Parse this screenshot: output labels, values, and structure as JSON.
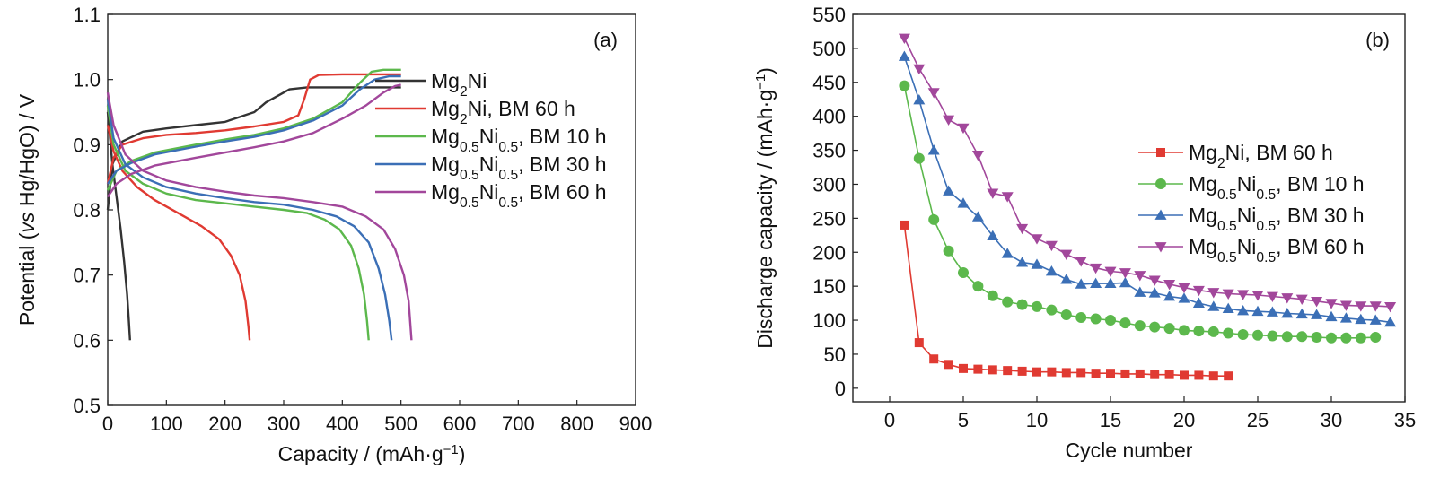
{
  "chart_data": [
    {
      "type": "line",
      "panel_label": "(a)",
      "xlabel": "Capacity / (mAh·g⁻¹)",
      "ylabel": "Potential (vs Hg/HgO) / V",
      "xlim": [
        0,
        900
      ],
      "ylim": [
        0.5,
        1.1
      ],
      "x_ticks": [
        0,
        100,
        200,
        300,
        400,
        500,
        600,
        700,
        800,
        900
      ],
      "y_ticks": [
        0.5,
        0.6,
        0.7,
        0.8,
        0.9,
        1.0,
        1.1
      ],
      "legend_position": "right",
      "series": [
        {
          "name": "Mg₂Ni",
          "color": "#333333",
          "branches": [
            [
              [
                0,
                0.8
              ],
              [
                8,
                0.87
              ],
              [
                25,
                0.905
              ],
              [
                60,
                0.92
              ],
              [
                100,
                0.925
              ],
              [
                150,
                0.93
              ],
              [
                200,
                0.935
              ],
              [
                250,
                0.95
              ],
              [
                270,
                0.965
              ],
              [
                290,
                0.975
              ],
              [
                310,
                0.985
              ],
              [
                340,
                0.988
              ],
              [
                400,
                0.988
              ],
              [
                450,
                0.988
              ],
              [
                500,
                0.988
              ]
            ],
            [
              [
                0,
                0.95
              ],
              [
                8,
                0.87
              ],
              [
                15,
                0.82
              ],
              [
                22,
                0.77
              ],
              [
                28,
                0.72
              ],
              [
                33,
                0.67
              ],
              [
                36,
                0.63
              ],
              [
                38,
                0.6
              ]
            ]
          ]
        },
        {
          "name": "Mg₂Ni, BM 60 h",
          "color": "#e03a32",
          "branches": [
            [
              [
                0,
                0.84
              ],
              [
                10,
                0.88
              ],
              [
                25,
                0.9
              ],
              [
                60,
                0.91
              ],
              [
                100,
                0.915
              ],
              [
                150,
                0.918
              ],
              [
                200,
                0.922
              ],
              [
                250,
                0.928
              ],
              [
                300,
                0.935
              ],
              [
                325,
                0.945
              ],
              [
                335,
                0.97
              ],
              [
                345,
                1.0
              ],
              [
                360,
                1.007
              ],
              [
                400,
                1.008
              ],
              [
                450,
                1.008
              ],
              [
                500,
                1.008
              ]
            ],
            [
              [
                0,
                0.93
              ],
              [
                10,
                0.89
              ],
              [
                25,
                0.86
              ],
              [
                50,
                0.835
              ],
              [
                80,
                0.815
              ],
              [
                120,
                0.795
              ],
              [
                160,
                0.775
              ],
              [
                190,
                0.755
              ],
              [
                210,
                0.73
              ],
              [
                225,
                0.7
              ],
              [
                235,
                0.66
              ],
              [
                240,
                0.62
              ],
              [
                242,
                0.6
              ]
            ]
          ]
        },
        {
          "name": "Mg₀.₅Ni₀.₅, BM 10 h",
          "color": "#5cb84c",
          "branches": [
            [
              [
                0,
                0.83
              ],
              [
                15,
                0.86
              ],
              [
                40,
                0.875
              ],
              [
                80,
                0.888
              ],
              [
                150,
                0.9
              ],
              [
                200,
                0.908
              ],
              [
                250,
                0.915
              ],
              [
                300,
                0.925
              ],
              [
                350,
                0.94
              ],
              [
                400,
                0.965
              ],
              [
                430,
                0.995
              ],
              [
                450,
                1.012
              ],
              [
                470,
                1.015
              ],
              [
                500,
                1.015
              ]
            ],
            [
              [
                0,
                0.96
              ],
              [
                10,
                0.9
              ],
              [
                30,
                0.86
              ],
              [
                60,
                0.84
              ],
              [
                100,
                0.825
              ],
              [
                150,
                0.815
              ],
              [
                200,
                0.81
              ],
              [
                250,
                0.805
              ],
              [
                300,
                0.8
              ],
              [
                340,
                0.795
              ],
              [
                370,
                0.785
              ],
              [
                395,
                0.77
              ],
              [
                415,
                0.745
              ],
              [
                428,
                0.71
              ],
              [
                437,
                0.67
              ],
              [
                442,
                0.63
              ],
              [
                445,
                0.6
              ]
            ]
          ]
        },
        {
          "name": "Mg₀.₅Ni₀.₅, BM 30 h",
          "color": "#3b6fb6",
          "branches": [
            [
              [
                0,
                0.84
              ],
              [
                15,
                0.86
              ],
              [
                40,
                0.872
              ],
              [
                80,
                0.885
              ],
              [
                150,
                0.897
              ],
              [
                200,
                0.905
              ],
              [
                250,
                0.912
              ],
              [
                300,
                0.922
              ],
              [
                350,
                0.937
              ],
              [
                400,
                0.96
              ],
              [
                430,
                0.985
              ],
              [
                455,
                1.0
              ],
              [
                480,
                1.005
              ],
              [
                500,
                1.005
              ]
            ],
            [
              [
                0,
                0.97
              ],
              [
                10,
                0.91
              ],
              [
                30,
                0.87
              ],
              [
                60,
                0.85
              ],
              [
                100,
                0.835
              ],
              [
                150,
                0.825
              ],
              [
                200,
                0.818
              ],
              [
                250,
                0.812
              ],
              [
                300,
                0.808
              ],
              [
                350,
                0.8
              ],
              [
                390,
                0.79
              ],
              [
                420,
                0.775
              ],
              [
                445,
                0.75
              ],
              [
                462,
                0.71
              ],
              [
                473,
                0.67
              ],
              [
                480,
                0.63
              ],
              [
                484,
                0.6
              ]
            ]
          ]
        },
        {
          "name": "Mg₀.₅Ni₀.₅, BM 60 h",
          "color": "#a2479b",
          "branches": [
            [
              [
                0,
                0.82
              ],
              [
                15,
                0.84
              ],
              [
                40,
                0.855
              ],
              [
                80,
                0.868
              ],
              [
                150,
                0.88
              ],
              [
                200,
                0.888
              ],
              [
                250,
                0.896
              ],
              [
                300,
                0.905
              ],
              [
                350,
                0.918
              ],
              [
                400,
                0.94
              ],
              [
                440,
                0.96
              ],
              [
                470,
                0.98
              ],
              [
                490,
                0.99
              ],
              [
                500,
                0.992
              ]
            ],
            [
              [
                0,
                0.98
              ],
              [
                10,
                0.93
              ],
              [
                30,
                0.885
              ],
              [
                60,
                0.86
              ],
              [
                100,
                0.845
              ],
              [
                150,
                0.835
              ],
              [
                200,
                0.828
              ],
              [
                250,
                0.822
              ],
              [
                300,
                0.818
              ],
              [
                350,
                0.812
              ],
              [
                400,
                0.805
              ],
              [
                440,
                0.79
              ],
              [
                470,
                0.77
              ],
              [
                490,
                0.74
              ],
              [
                505,
                0.7
              ],
              [
                513,
                0.66
              ],
              [
                518,
                0.6
              ]
            ]
          ]
        }
      ]
    },
    {
      "type": "line",
      "panel_label": "(b)",
      "xlabel": "Cycle number",
      "ylabel": "Discharge capacity / (mAh·g⁻¹)",
      "xlim": [
        -2.5,
        35
      ],
      "ylim": [
        -20,
        550
      ],
      "x_ticks": [
        0,
        5,
        10,
        15,
        20,
        25,
        30,
        35
      ],
      "y_ticks": [
        0,
        50,
        100,
        150,
        200,
        250,
        300,
        350,
        400,
        450,
        500,
        550
      ],
      "legend_position": "right",
      "series": [
        {
          "name": "Mg₂Ni, BM 60 h",
          "color": "#e03a32",
          "marker": "square",
          "x": [
            1,
            2,
            3,
            4,
            5,
            6,
            7,
            8,
            9,
            10,
            11,
            12,
            13,
            14,
            15,
            16,
            17,
            18,
            19,
            20,
            21,
            22,
            23
          ],
          "y": [
            240,
            67,
            43,
            35,
            29,
            28,
            27,
            26,
            25,
            24,
            24,
            23,
            23,
            22,
            22,
            21,
            21,
            20,
            20,
            19,
            19,
            18,
            18
          ]
        },
        {
          "name": "Mg₀.₅Ni₀.₅, BM 10 h",
          "color": "#5cb84c",
          "marker": "circle",
          "x": [
            1,
            2,
            3,
            4,
            5,
            6,
            7,
            8,
            9,
            10,
            11,
            12,
            13,
            14,
            15,
            16,
            17,
            18,
            19,
            20,
            21,
            22,
            23,
            24,
            25,
            26,
            27,
            28,
            29,
            30,
            31,
            32,
            33
          ],
          "y": [
            445,
            338,
            248,
            202,
            170,
            150,
            136,
            127,
            123,
            120,
            115,
            108,
            104,
            102,
            100,
            96,
            92,
            90,
            88,
            85,
            84,
            83,
            81,
            79,
            78,
            77,
            76,
            76,
            75,
            74,
            74,
            74,
            75
          ]
        },
        {
          "name": "Mg₀.₅Ni₀.₅, BM 30 h",
          "color": "#3b6fb6",
          "marker": "triangle-up",
          "x": [
            1,
            2,
            3,
            4,
            5,
            6,
            7,
            8,
            9,
            10,
            11,
            12,
            13,
            14,
            15,
            16,
            17,
            18,
            19,
            20,
            21,
            22,
            23,
            24,
            25,
            26,
            27,
            28,
            29,
            30,
            31,
            32,
            33,
            34
          ],
          "y": [
            488,
            424,
            350,
            290,
            272,
            252,
            224,
            198,
            185,
            182,
            172,
            160,
            153,
            154,
            154,
            155,
            141,
            140,
            135,
            132,
            125,
            120,
            117,
            114,
            113,
            112,
            110,
            109,
            108,
            105,
            103,
            101,
            100,
            97
          ]
        },
        {
          "name": "Mg₀.₅Ni₀.₅, BM 60 h",
          "color": "#a2479b",
          "marker": "triangle-down",
          "x": [
            1,
            2,
            3,
            4,
            5,
            6,
            7,
            8,
            9,
            10,
            11,
            12,
            13,
            14,
            15,
            16,
            17,
            18,
            19,
            20,
            21,
            22,
            23,
            24,
            25,
            26,
            27,
            28,
            29,
            30,
            31,
            32,
            33,
            34
          ],
          "y": [
            515,
            470,
            435,
            395,
            383,
            343,
            287,
            282,
            235,
            220,
            210,
            197,
            187,
            177,
            172,
            170,
            166,
            159,
            153,
            148,
            144,
            141,
            139,
            138,
            137,
            135,
            133,
            131,
            128,
            125,
            122,
            121,
            121,
            120
          ]
        }
      ]
    }
  ]
}
